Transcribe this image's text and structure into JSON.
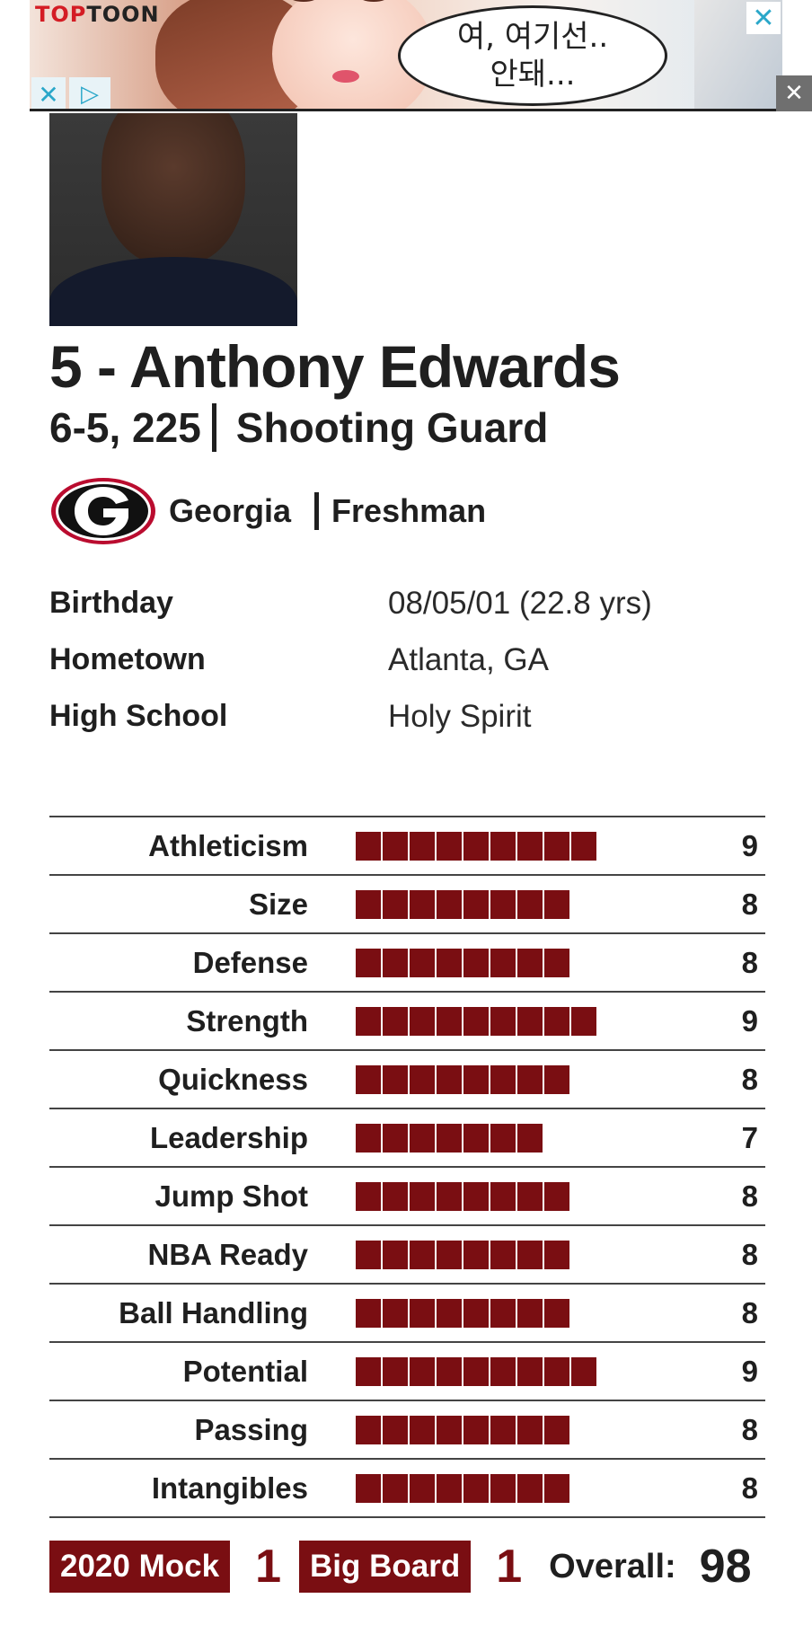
{
  "ad": {
    "brand_part1": "TOP",
    "brand_part2": "TOON",
    "bubble_line1": "여, 여기선..",
    "bubble_line2": "안돼...",
    "close_glyph": "✕",
    "adchoices_glyph": "▷",
    "x_glyph": "✕",
    "dismiss_glyph": "✕"
  },
  "player": {
    "name": "5 - Anthony Edwards",
    "size": "6-5, 225",
    "position": "Shooting Guard",
    "school": "Georgia",
    "class": "Freshman",
    "school_logo_letter": "G"
  },
  "info": [
    {
      "label": "Birthday",
      "value": "08/05/01 (22.8 yrs)"
    },
    {
      "label": "Hometown",
      "value": "Atlanta, GA"
    },
    {
      "label": "High School",
      "value": "Holy Spirit"
    }
  ],
  "ratings": [
    {
      "label": "Athleticism",
      "value": "9"
    },
    {
      "label": "Size",
      "value": "8"
    },
    {
      "label": "Defense",
      "value": "8"
    },
    {
      "label": "Strength",
      "value": "9"
    },
    {
      "label": "Quickness",
      "value": "8"
    },
    {
      "label": "Leadership",
      "value": "7"
    },
    {
      "label": "Jump Shot",
      "value": "8"
    },
    {
      "label": "NBA Ready",
      "value": "8"
    },
    {
      "label": "Ball Handling",
      "value": "8"
    },
    {
      "label": "Potential",
      "value": "9"
    },
    {
      "label": "Passing",
      "value": "8"
    },
    {
      "label": "Intangibles",
      "value": "8"
    }
  ],
  "footer": {
    "mock_label": "2020 Mock",
    "mock_rank": "1",
    "board_label": "Big Board",
    "board_rank": "1",
    "overall_label": "Overall:",
    "overall_value": "98"
  },
  "colors": {
    "accent": "#7a0e12",
    "text": "#1f1f1f",
    "ad_icon": "#2aa7c9"
  }
}
